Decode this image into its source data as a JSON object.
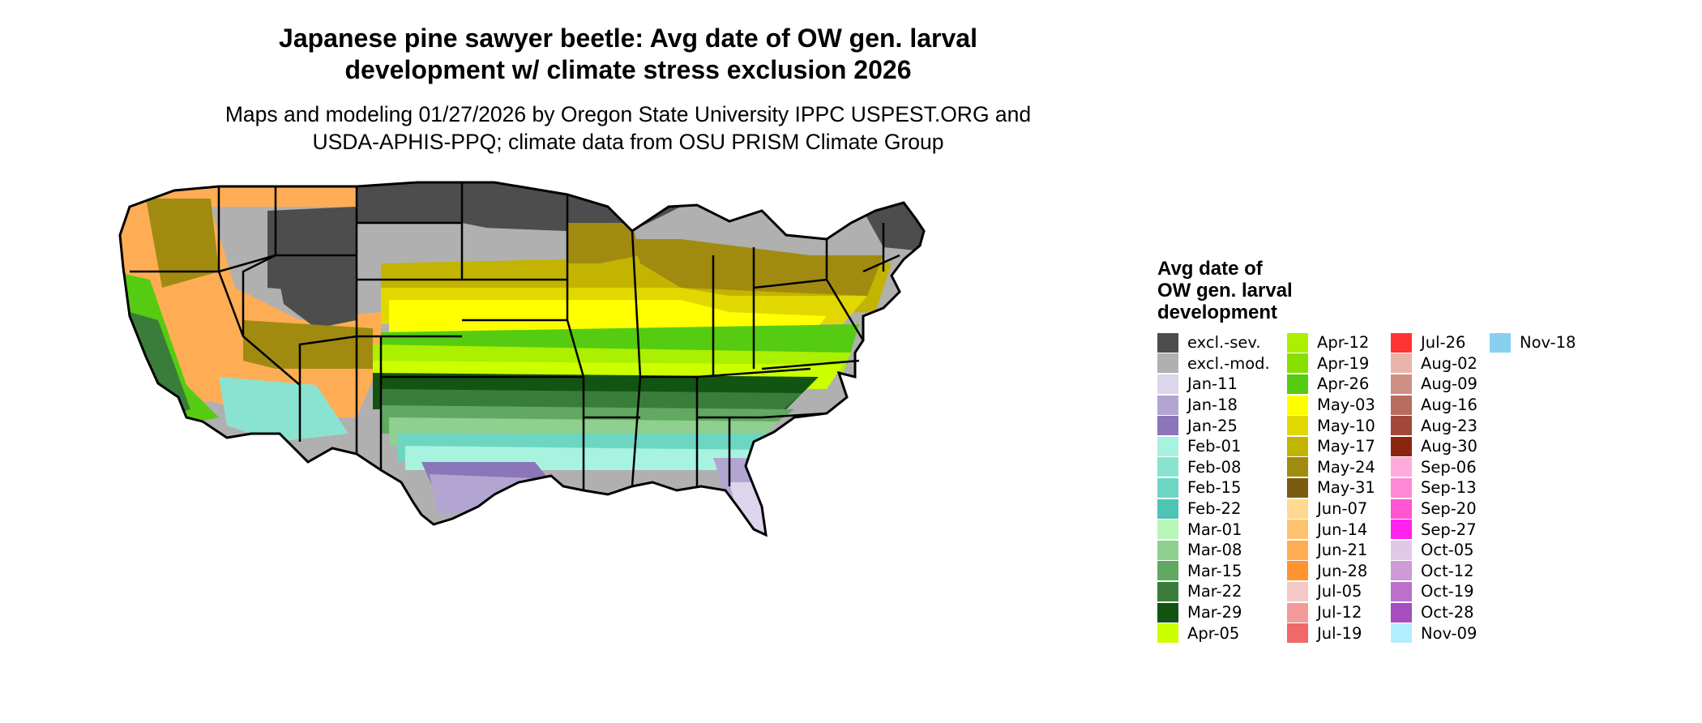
{
  "title": [
    "Japanese pine sawyer beetle: Avg date of OW gen. larval",
    "development w/ climate stress exclusion 2026"
  ],
  "subtitle": [
    "Maps and modeling 01/27/2026 by Oregon State University IPPC USPEST.ORG and",
    "USDA-APHIS-PPQ; climate data from OSU PRISM Climate Group"
  ],
  "legend": {
    "title": [
      "Avg date of",
      "OW gen. larval",
      "development"
    ],
    "items": [
      {
        "label": "excl.-sev.",
        "color": "#4d4d4d"
      },
      {
        "label": "excl.-mod.",
        "color": "#b0b0b0"
      },
      {
        "label": "Jan-11",
        "color": "#ddd5ec"
      },
      {
        "label": "Jan-18",
        "color": "#b3a5d2"
      },
      {
        "label": "Jan-25",
        "color": "#8a76b8"
      },
      {
        "label": "Feb-01",
        "color": "#a8f2e0"
      },
      {
        "label": "Feb-08",
        "color": "#8ae3d1"
      },
      {
        "label": "Feb-15",
        "color": "#6dd6c3"
      },
      {
        "label": "Feb-22",
        "color": "#4ec4b4"
      },
      {
        "label": "Mar-01",
        "color": "#b8f5b8"
      },
      {
        "label": "Mar-08",
        "color": "#8fcf8f"
      },
      {
        "label": "Mar-15",
        "color": "#61a861"
      },
      {
        "label": "Mar-22",
        "color": "#3a7d3a"
      },
      {
        "label": "Mar-29",
        "color": "#125412"
      },
      {
        "label": "Apr-05",
        "color": "#ccff00"
      },
      {
        "label": "Apr-12",
        "color": "#aaf000"
      },
      {
        "label": "Apr-19",
        "color": "#88e000"
      },
      {
        "label": "Apr-26",
        "color": "#55cc11"
      },
      {
        "label": "May-03",
        "color": "#ffff00"
      },
      {
        "label": "May-10",
        "color": "#e0d800"
      },
      {
        "label": "May-17",
        "color": "#c2b400"
      },
      {
        "label": "May-24",
        "color": "#a08b10"
      },
      {
        "label": "May-31",
        "color": "#7a5c10"
      },
      {
        "label": "Jun-07",
        "color": "#ffd98f"
      },
      {
        "label": "Jun-14",
        "color": "#ffc270"
      },
      {
        "label": "Jun-21",
        "color": "#ffad55"
      },
      {
        "label": "Jun-28",
        "color": "#ff9430"
      },
      {
        "label": "Jul-05",
        "color": "#f5c8c8"
      },
      {
        "label": "Jul-12",
        "color": "#f29a9a"
      },
      {
        "label": "Jul-19",
        "color": "#f06868"
      },
      {
        "label": "Jul-26",
        "color": "#ff3333"
      },
      {
        "label": "Aug-02",
        "color": "#e8b3a8"
      },
      {
        "label": "Aug-09",
        "color": "#d08f84"
      },
      {
        "label": "Aug-16",
        "color": "#b86c5f"
      },
      {
        "label": "Aug-23",
        "color": "#a14838"
      },
      {
        "label": "Aug-30",
        "color": "#8a2510"
      },
      {
        "label": "Sep-06",
        "color": "#ffaadd"
      },
      {
        "label": "Sep-13",
        "color": "#ff88d5"
      },
      {
        "label": "Sep-20",
        "color": "#ff55d0"
      },
      {
        "label": "Sep-27",
        "color": "#ff22ee"
      },
      {
        "label": "Oct-05",
        "color": "#e2c8e8"
      },
      {
        "label": "Oct-12",
        "color": "#cf9ad8"
      },
      {
        "label": "Oct-19",
        "color": "#bb70cc"
      },
      {
        "label": "Oct-28",
        "color": "#a64dc0"
      },
      {
        "label": "Nov-09",
        "color": "#b3eeff"
      },
      {
        "label": "Nov-18",
        "color": "#88d0f0"
      }
    ]
  }
}
